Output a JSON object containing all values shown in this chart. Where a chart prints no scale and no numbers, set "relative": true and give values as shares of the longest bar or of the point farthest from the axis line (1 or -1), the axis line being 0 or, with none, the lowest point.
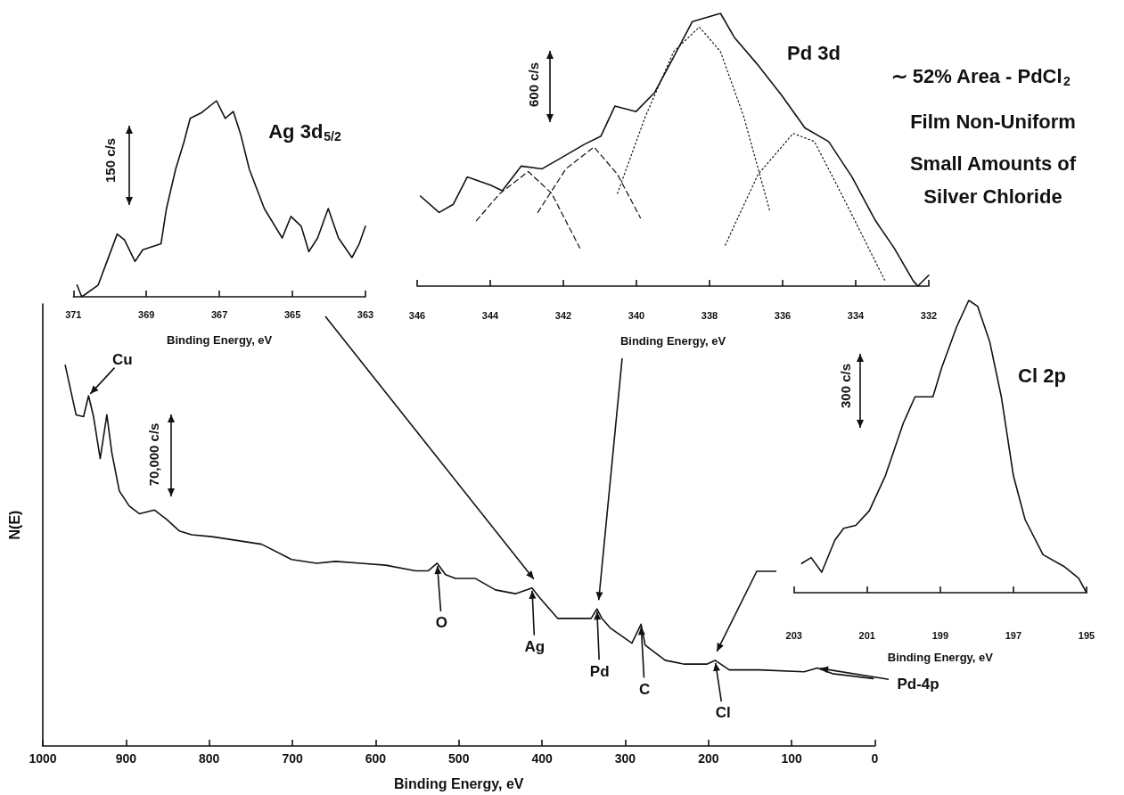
{
  "chart_data": [
    {
      "type": "line",
      "title": "Ag 3d$_{5/2}$",
      "xlabel": "Binding Energy, eV",
      "relative": true,
      "marker": "none",
      "line_style": "solid",
      "xlim": [
        371,
        363
      ],
      "xticks": [
        371,
        369,
        367,
        365,
        363
      ],
      "annotations": [
        "150 c/s"
      ],
      "series": [
        {
          "color": "#111111",
          "x": [
            370.9,
            370.77,
            370.32,
            370.08,
            369.8,
            369.6,
            369.31,
            369.1,
            368.6,
            368.45,
            368.2,
            367.97,
            367.8,
            367.48,
            367.08,
            366.84,
            366.62,
            366.42,
            366.18,
            365.77,
            365.28,
            365.04,
            364.76,
            364.55,
            364.31,
            364.02,
            363.74,
            363.37,
            363.17,
            363.0
          ],
          "values": [
            0.06,
            0.0,
            0.06,
            0.18,
            0.32,
            0.29,
            0.18,
            0.24,
            0.27,
            0.45,
            0.65,
            0.79,
            0.91,
            0.94,
            1.0,
            0.91,
            0.945,
            0.83,
            0.65,
            0.45,
            0.3,
            0.41,
            0.36,
            0.23,
            0.3,
            0.45,
            0.3,
            0.2,
            0.27,
            0.36
          ]
        }
      ]
    },
    {
      "type": "line",
      "title": "Pd 3d",
      "xlabel": "Binding Energy, eV",
      "relative": true,
      "marker": "none",
      "line_style": "solid",
      "xlim": [
        346,
        332
      ],
      "xticks": [
        346,
        344,
        342,
        340,
        338,
        336,
        334,
        332
      ],
      "annotations": [
        "600 c/s",
        "∼ 52% Area - PdCl$_{2}$",
        "Film Non-Uniform",
        "Small Amounts of",
        "Silver Chloride"
      ],
      "series": [
        {
          "color": "#111111",
          "x": [
            345.91,
            345.4,
            345.01,
            344.63,
            343.99,
            343.67,
            343.15,
            342.58,
            342.06,
            341.42,
            340.97,
            340.59,
            340.01,
            339.5,
            338.98,
            338.47,
            337.95,
            337.7,
            337.31,
            336.67,
            336.03,
            335.39,
            334.74,
            334.1,
            333.46,
            332.95,
            332.43,
            332.3,
            332.0
          ],
          "values": [
            0.33,
            0.27,
            0.3,
            0.4,
            0.37,
            0.35,
            0.44,
            0.43,
            0.47,
            0.52,
            0.55,
            0.66,
            0.64,
            0.71,
            0.84,
            0.97,
            0.99,
            1.0,
            0.91,
            0.81,
            0.7,
            0.58,
            0.53,
            0.4,
            0.24,
            0.14,
            0.02,
            0.0,
            0.04
          ]
        },
        {
          "color": "#111111",
          "line_style": "dashed",
          "x": [
            344.38,
            343.73,
            342.96,
            342.32,
            341.55
          ],
          "values": [
            0.24,
            0.34,
            0.42,
            0.34,
            0.14
          ]
        },
        {
          "color": "#111111",
          "line_style": "dashed",
          "x": [
            342.7,
            341.93,
            341.16,
            340.52,
            339.89
          ],
          "values": [
            0.27,
            0.43,
            0.51,
            0.41,
            0.25
          ]
        },
        {
          "color": "#111111",
          "line_style": "dotted",
          "x": [
            340.52,
            339.76,
            338.98,
            338.28,
            337.7,
            337.06,
            336.36
          ],
          "values": [
            0.34,
            0.62,
            0.86,
            0.95,
            0.86,
            0.62,
            0.28
          ]
        },
        {
          "color": "#111111",
          "line_style": "dotted",
          "x": [
            337.57,
            336.67,
            335.71,
            335.13,
            334.36,
            333.2
          ],
          "values": [
            0.15,
            0.41,
            0.56,
            0.53,
            0.33,
            0.02
          ]
        }
      ]
    },
    {
      "type": "line",
      "xlabel": "Binding Energy, eV",
      "ylabel": "N(E)",
      "relative": true,
      "marker": "none",
      "line_style": "solid",
      "xlim": [
        1000,
        0
      ],
      "xticks": [
        1000,
        900,
        800,
        700,
        600,
        500,
        400,
        300,
        200,
        100,
        0
      ],
      "annotations": [
        "70,000 c/s",
        {
          "text": "Cu",
          "x": 945,
          "y": 0.92
        },
        {
          "text": "O",
          "x": 526,
          "y": 0.48
        },
        {
          "text": "Ag",
          "x": 412,
          "y": 0.415
        },
        {
          "text": "Pd",
          "x": 334,
          "y": 0.36
        },
        {
          "text": "C",
          "x": 281,
          "y": 0.32
        },
        {
          "text": "Cl",
          "x": 192,
          "y": 0.225
        },
        {
          "text": "Pd-4p",
          "x": 69,
          "y": 0.205
        }
      ],
      "series": [
        {
          "color": "#111111",
          "x": [
            973,
            960,
            951,
            945,
            939,
            931,
            923,
            917,
            908,
            896,
            884,
            866,
            851,
            836,
            821,
            797,
            767,
            737,
            701,
            671,
            648,
            618,
            588,
            552,
            537,
            526,
            516,
            504,
            480,
            456,
            432,
            412,
            403,
            381,
            355,
            341,
            334,
            328,
            318,
            292,
            281,
            276,
            252,
            229,
            202,
            192,
            175,
            139,
            85,
            69,
            51,
            2
          ],
          "values": [
            1.0,
            0.87,
            0.865,
            0.92,
            0.865,
            0.755,
            0.87,
            0.77,
            0.67,
            0.63,
            0.61,
            0.62,
            0.595,
            0.565,
            0.555,
            0.55,
            0.54,
            0.53,
            0.49,
            0.48,
            0.485,
            0.48,
            0.475,
            0.46,
            0.46,
            0.48,
            0.45,
            0.44,
            0.44,
            0.41,
            0.4,
            0.415,
            0.39,
            0.335,
            0.335,
            0.335,
            0.36,
            0.335,
            0.31,
            0.27,
            0.32,
            0.265,
            0.225,
            0.215,
            0.215,
            0.225,
            0.2,
            0.2,
            0.195,
            0.205,
            0.19,
            0.177
          ]
        }
      ]
    },
    {
      "type": "line",
      "title": "Cl 2p",
      "xlabel": "Binding Energy, eV",
      "relative": true,
      "marker": "none",
      "line_style": "solid",
      "xlim": [
        203,
        195
      ],
      "xticks": [
        203,
        201,
        199,
        197,
        195
      ],
      "annotations": [
        "300 c/s"
      ],
      "series": [
        {
          "color": "#111111",
          "x": [
            202.79,
            202.53,
            202.24,
            201.88,
            201.64,
            201.31,
            200.94,
            200.5,
            200.01,
            199.69,
            199.2,
            198.96,
            198.55,
            198.22,
            197.98,
            197.65,
            197.33,
            197.0,
            196.68,
            196.19,
            195.62,
            195.22,
            195.0
          ],
          "values": [
            0.1,
            0.12,
            0.07,
            0.18,
            0.22,
            0.23,
            0.28,
            0.4,
            0.58,
            0.67,
            0.67,
            0.77,
            0.91,
            1.0,
            0.98,
            0.86,
            0.67,
            0.4,
            0.25,
            0.13,
            0.09,
            0.05,
            0.0
          ]
        }
      ]
    }
  ]
}
